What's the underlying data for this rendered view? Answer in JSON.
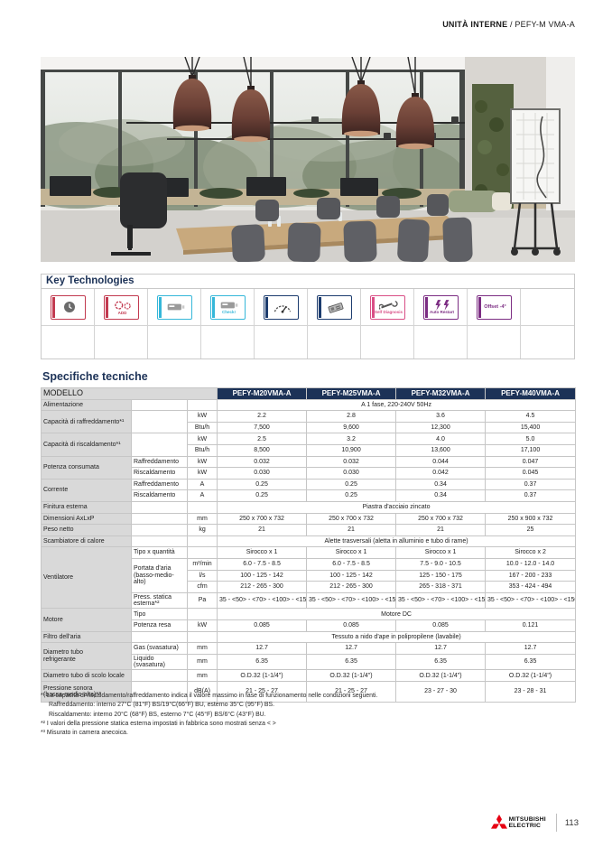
{
  "colors": {
    "navy": "#1c3257",
    "brand_red": "#e60012",
    "table_gray": "#d9d9d9"
  },
  "header": {
    "section": "UNITÀ INTERNE",
    "divider": " / ",
    "model": "PEFY-M VMA-A"
  },
  "key_technologies": {
    "title": "Key Technologies",
    "columns": 10,
    "icons": [
      {
        "name": "timer-icon",
        "glyph": "clock",
        "label": "",
        "color": "#c23a50"
      },
      {
        "name": "add-function-icon",
        "glyph": "gears",
        "label": "ADD",
        "color": "#c23a50"
      },
      {
        "name": "wired-remote-icon",
        "glyph": "remote",
        "label": "",
        "color": "#35b7d9"
      },
      {
        "name": "remote-check-icon",
        "glyph": "remote",
        "label": "Check!",
        "color": "#35b7d9"
      },
      {
        "name": "static-pressure-gauge-icon",
        "glyph": "gauge",
        "label": "",
        "color": "#1c3c6e"
      },
      {
        "name": "pcb-icon",
        "glyph": "board",
        "label": "",
        "color": "#1c3c6e"
      },
      {
        "name": "self-diagnosis-icon",
        "glyph": "wrench",
        "label": "Self Diagnosis",
        "color": "#d94f86"
      },
      {
        "name": "auto-restart-icon",
        "glyph": "bolts",
        "label": "Auto Restart",
        "color": "#7c2d83"
      },
      {
        "name": "offset-icon",
        "glyph": "text",
        "label": "Offset -4°",
        "color": "#7c2d83"
      }
    ]
  },
  "spec": {
    "title": "Specifiche tecniche",
    "modello_label": "MODELLO",
    "models": [
      "PEFY-M20VMA-A",
      "PEFY-M25VMA-A",
      "PEFY-M32VMA-A",
      "PEFY-M40VMA-A"
    ],
    "rows": [
      {
        "g": 1,
        "cells": [
          {
            "t": "Alimentazione",
            "k": "lbl"
          },
          {
            "t": "",
            "k": "sub"
          },
          {
            "t": "",
            "k": "unit"
          },
          {
            "t": "A 1 fase, 220-240V 50Hz",
            "c": 4
          }
        ]
      },
      {
        "g": 1,
        "cells": [
          {
            "t": "Capacità di raffreddamento*¹",
            "k": "lbl",
            "r": 2
          },
          {
            "t": "",
            "k": "sub",
            "r": 2
          },
          {
            "t": "kW",
            "k": "unit"
          },
          {
            "t": "2.2"
          },
          {
            "t": "2.8"
          },
          {
            "t": "3.6"
          },
          {
            "t": "4.5"
          }
        ]
      },
      {
        "cells": [
          {
            "t": "Btu/h",
            "k": "unit"
          },
          {
            "t": "7,500"
          },
          {
            "t": "9,600"
          },
          {
            "t": "12,300"
          },
          {
            "t": "15,400"
          }
        ]
      },
      {
        "g": 1,
        "cells": [
          {
            "t": "Capacità di riscaldamento*¹",
            "k": "lbl",
            "r": 2
          },
          {
            "t": "",
            "k": "sub",
            "r": 2
          },
          {
            "t": "kW",
            "k": "unit"
          },
          {
            "t": "2.5"
          },
          {
            "t": "3.2"
          },
          {
            "t": "4.0"
          },
          {
            "t": "5.0"
          }
        ]
      },
      {
        "cells": [
          {
            "t": "Btu/h",
            "k": "unit"
          },
          {
            "t": "8,500"
          },
          {
            "t": "10,900"
          },
          {
            "t": "13,600"
          },
          {
            "t": "17,100"
          }
        ]
      },
      {
        "g": 1,
        "cells": [
          {
            "t": "Potenza consumata",
            "k": "lbl",
            "r": 2
          },
          {
            "t": "Raffreddamento",
            "k": "sub"
          },
          {
            "t": "kW",
            "k": "unit"
          },
          {
            "t": "0.032"
          },
          {
            "t": "0.032"
          },
          {
            "t": "0.044"
          },
          {
            "t": "0.047"
          }
        ]
      },
      {
        "cells": [
          {
            "t": "Riscaldamento",
            "k": "sub"
          },
          {
            "t": "kW",
            "k": "unit"
          },
          {
            "t": "0.030"
          },
          {
            "t": "0.030"
          },
          {
            "t": "0.042"
          },
          {
            "t": "0.045"
          }
        ]
      },
      {
        "g": 1,
        "cells": [
          {
            "t": "Corrente",
            "k": "lbl",
            "r": 2
          },
          {
            "t": "Raffreddamento",
            "k": "sub"
          },
          {
            "t": "A",
            "k": "unit"
          },
          {
            "t": "0.25"
          },
          {
            "t": "0.25"
          },
          {
            "t": "0.34"
          },
          {
            "t": "0.37"
          }
        ]
      },
      {
        "cells": [
          {
            "t": "Riscaldamento",
            "k": "sub"
          },
          {
            "t": "A",
            "k": "unit"
          },
          {
            "t": "0.25"
          },
          {
            "t": "0.25"
          },
          {
            "t": "0.34"
          },
          {
            "t": "0.37"
          }
        ]
      },
      {
        "g": 1,
        "cells": [
          {
            "t": "Finitura esterna",
            "k": "lbl"
          },
          {
            "t": "",
            "k": "sub"
          },
          {
            "t": "",
            "k": "unit"
          },
          {
            "t": "Piastra d'acciaio zincato",
            "c": 4
          }
        ]
      },
      {
        "g": 1,
        "cells": [
          {
            "t": "Dimensioni AxLxP",
            "k": "lbl"
          },
          {
            "t": "",
            "k": "sub"
          },
          {
            "t": "mm",
            "k": "unit"
          },
          {
            "t": "250 x 700 x 732"
          },
          {
            "t": "250 x 700 x 732"
          },
          {
            "t": "250 x 700 x 732"
          },
          {
            "t": "250 x 900 x 732"
          }
        ]
      },
      {
        "g": 1,
        "cells": [
          {
            "t": "Peso netto",
            "k": "lbl"
          },
          {
            "t": "",
            "k": "sub"
          },
          {
            "t": "kg",
            "k": "unit"
          },
          {
            "t": "21"
          },
          {
            "t": "21"
          },
          {
            "t": "21"
          },
          {
            "t": "25"
          }
        ]
      },
      {
        "g": 1,
        "cells": [
          {
            "t": "Scambiatore di calore",
            "k": "lbl"
          },
          {
            "t": "",
            "k": "sub"
          },
          {
            "t": "",
            "k": "unit"
          },
          {
            "t": "Alette trasversali (aletta in alluminio e tubo di rame)",
            "c": 4
          }
        ]
      },
      {
        "g": 1,
        "cells": [
          {
            "t": "Ventilatore",
            "k": "lbl",
            "r": 5
          },
          {
            "t": "Tipo x quantità",
            "k": "sub"
          },
          {
            "t": "",
            "k": "unit"
          },
          {
            "t": "Sirocco x 1"
          },
          {
            "t": "Sirocco x 1"
          },
          {
            "t": "Sirocco x 1"
          },
          {
            "t": "Sirocco x 2"
          }
        ]
      },
      {
        "cells": [
          {
            "t": "Portata d'aria\n(basso-medio-alto)",
            "k": "sub",
            "r": 3
          },
          {
            "t": "m³/min",
            "k": "unit"
          },
          {
            "t": "6.0 - 7.5 - 8.5"
          },
          {
            "t": "6.0 - 7.5 - 8.5"
          },
          {
            "t": "7.5 - 9.0 - 10.5"
          },
          {
            "t": "10.0 - 12.0 - 14.0"
          }
        ]
      },
      {
        "cells": [
          {
            "t": "l/s",
            "k": "unit"
          },
          {
            "t": "100 - 125 - 142"
          },
          {
            "t": "100 - 125 - 142"
          },
          {
            "t": "125 - 150 - 175"
          },
          {
            "t": "167 - 200 - 233"
          }
        ]
      },
      {
        "cells": [
          {
            "t": "cfm",
            "k": "unit"
          },
          {
            "t": "212 - 265 - 300"
          },
          {
            "t": "212 - 265 - 300"
          },
          {
            "t": "265 - 318 - 371"
          },
          {
            "t": "353 - 424 - 494"
          }
        ]
      },
      {
        "cells": [
          {
            "t": "Press. statica esterna*²",
            "k": "sub"
          },
          {
            "t": "Pa",
            "k": "unit"
          },
          {
            "t": "35 - <50> - <70> - <100> - <150>"
          },
          {
            "t": "35 - <50> - <70> - <100> - <150>"
          },
          {
            "t": "35 - <50> - <70> - <100> - <150>"
          },
          {
            "t": "35 - <50> - <70> - <100> - <150>"
          }
        ]
      },
      {
        "g": 1,
        "cells": [
          {
            "t": "Motore",
            "k": "lbl",
            "r": 2
          },
          {
            "t": "Tipo",
            "k": "sub"
          },
          {
            "t": "",
            "k": "unit"
          },
          {
            "t": "Motore DC",
            "c": 4
          }
        ]
      },
      {
        "cells": [
          {
            "t": "Potenza resa",
            "k": "sub"
          },
          {
            "t": "kW",
            "k": "unit"
          },
          {
            "t": "0.085"
          },
          {
            "t": "0.085"
          },
          {
            "t": "0.085"
          },
          {
            "t": "0.121"
          }
        ]
      },
      {
        "g": 1,
        "cells": [
          {
            "t": "Filtro dell'aria",
            "k": "lbl"
          },
          {
            "t": "",
            "k": "sub"
          },
          {
            "t": "",
            "k": "unit"
          },
          {
            "t": "Tessuto a nido d'ape in polipropilene (lavabile)",
            "c": 4
          }
        ]
      },
      {
        "g": 1,
        "cells": [
          {
            "t": "Diametro tubo\nrefrigerante",
            "k": "lbl",
            "r": 2
          },
          {
            "t": "Gas (svasatura)",
            "k": "sub"
          },
          {
            "t": "mm",
            "k": "unit"
          },
          {
            "t": "12.7"
          },
          {
            "t": "12.7"
          },
          {
            "t": "12.7"
          },
          {
            "t": "12.7"
          }
        ]
      },
      {
        "cells": [
          {
            "t": "Liquido (svasatura)",
            "k": "sub"
          },
          {
            "t": "mm",
            "k": "unit"
          },
          {
            "t": "6.35"
          },
          {
            "t": "6.35"
          },
          {
            "t": "6.35"
          },
          {
            "t": "6.35"
          }
        ]
      },
      {
        "g": 1,
        "cells": [
          {
            "t": "Diametro tubo di scolo locale",
            "k": "lbl"
          },
          {
            "t": "",
            "k": "sub"
          },
          {
            "t": "mm",
            "k": "unit"
          },
          {
            "t": "O.D.32 (1-1/4\")"
          },
          {
            "t": "O.D.32 (1-1/4\")"
          },
          {
            "t": "O.D.32 (1-1/4\")"
          },
          {
            "t": "O.D.32 (1-1/4\")"
          }
        ]
      },
      {
        "g": 1,
        "tall": 1,
        "cells": [
          {
            "t": "Pressione sonora\n(bassa-medio-alta)*³",
            "k": "lbl"
          },
          {
            "t": "",
            "k": "sub"
          },
          {
            "t": "dB(A)",
            "k": "unit"
          },
          {
            "t": "21 - 25 - 27"
          },
          {
            "t": "21 - 25 - 27"
          },
          {
            "t": "23 - 27 - 30"
          },
          {
            "t": "23 - 28 - 31"
          }
        ]
      }
    ]
  },
  "footnotes": [
    {
      "text": "*¹ La capacità di riscaldamento/raffreddamento indica il valore massimo in fase di funzionamento nelle condizioni seguenti.",
      "indent": false
    },
    {
      "text": "Raffreddamento: interno 27°C (81°F) BS/19°C(66°F) BU, esterno 35°C (95°F) BS.",
      "indent": true
    },
    {
      "text": "Riscaldamento: interno 20°C (68°F) BS, esterno 7°C (45°F) BS/6°C (43°F) BU.",
      "indent": true
    },
    {
      "text": "*² I valori della pressione statica esterna impostati in fabbrica sono mostrati senza < >",
      "indent": false
    },
    {
      "text": "*³ Misurato in camera anecoica.",
      "indent": false
    }
  ],
  "footer": {
    "brand_line1": "MITSUBISHI",
    "brand_line2": "ELECTRIC",
    "page_number": "113"
  }
}
